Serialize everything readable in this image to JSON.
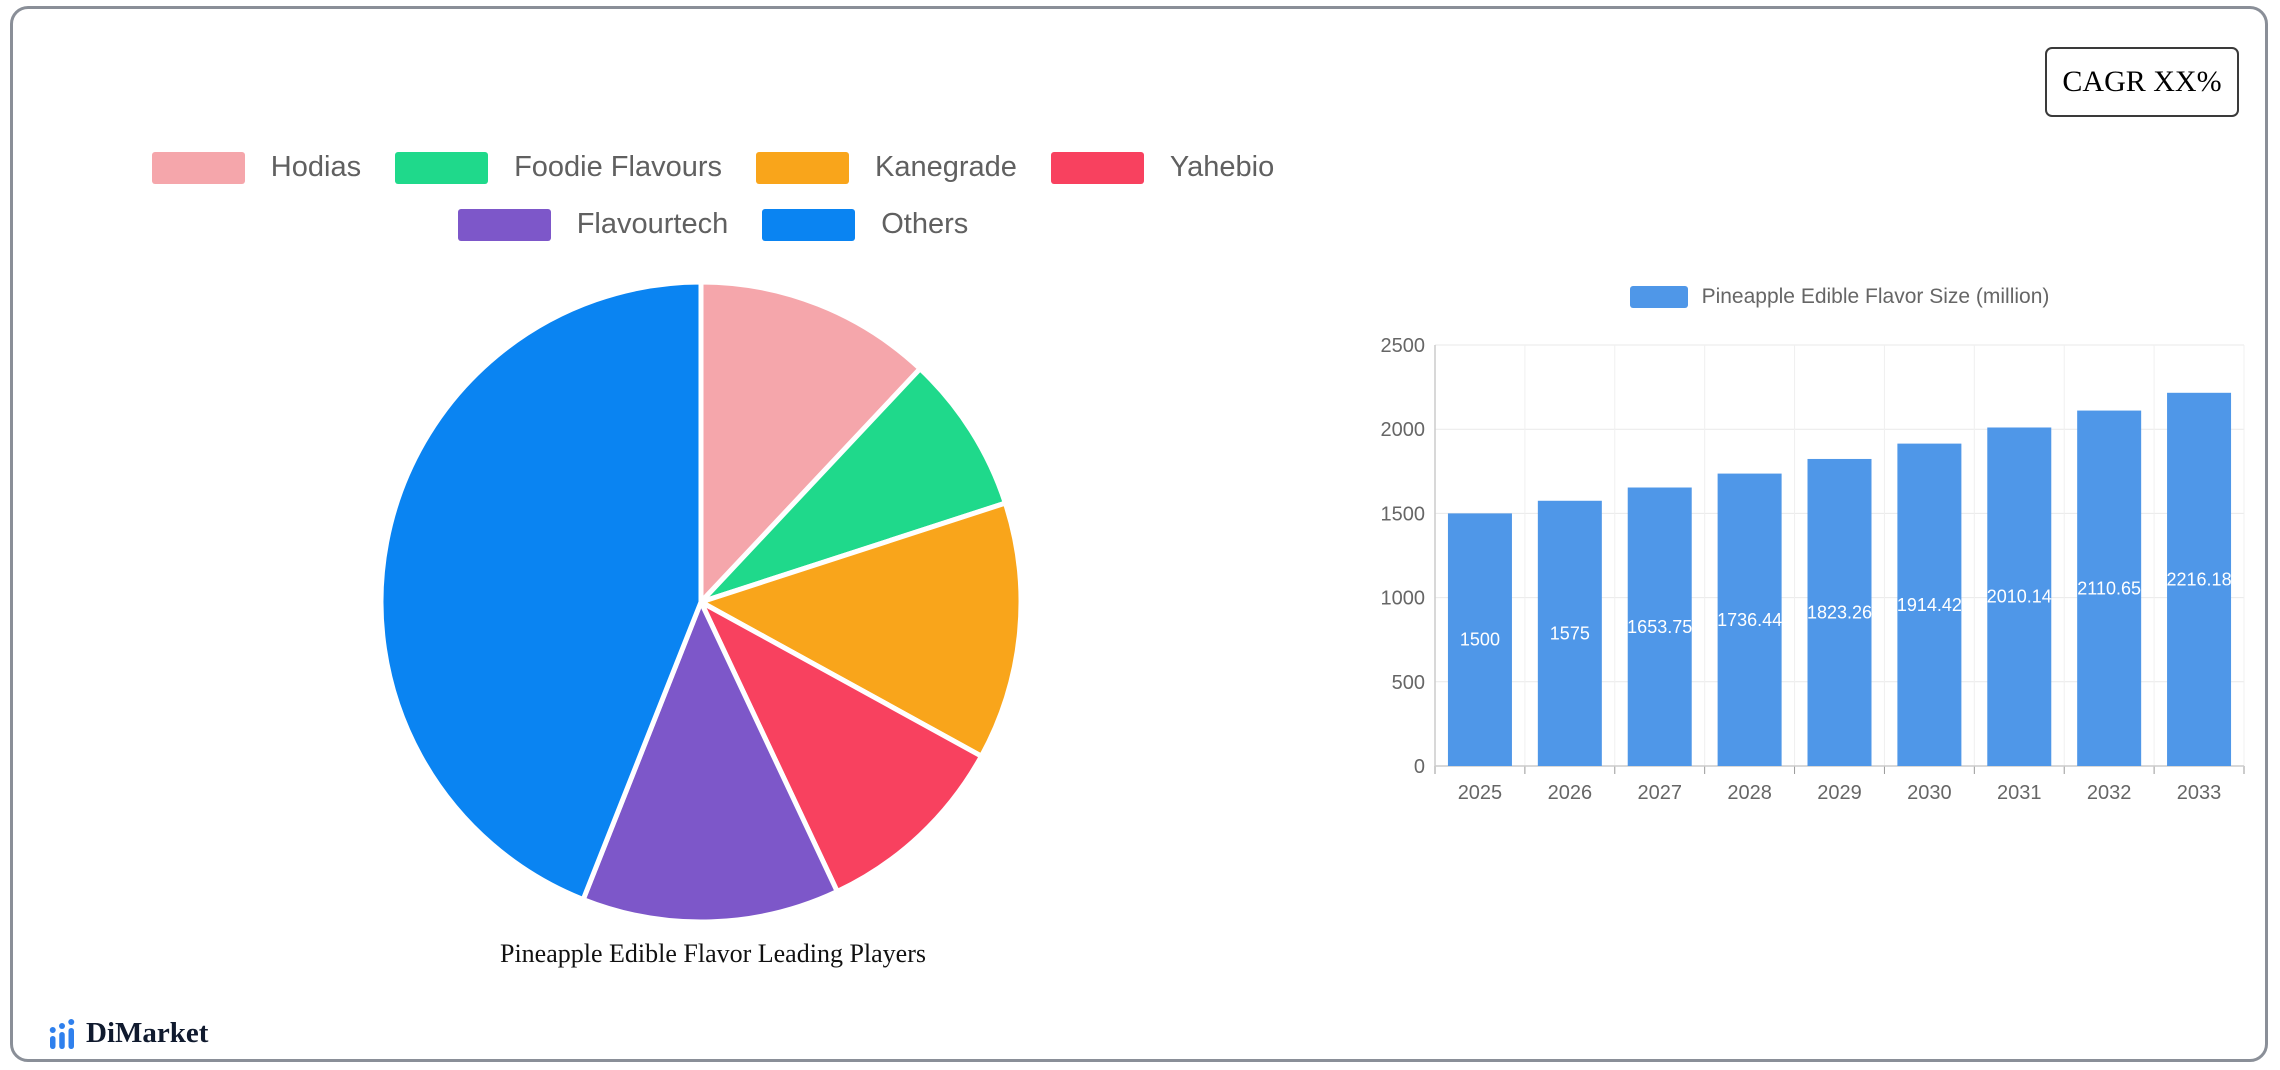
{
  "card": {
    "cagr_label": "CAGR XX%"
  },
  "logo": {
    "text": "DiMarket",
    "icon_color": "#2f80ed"
  },
  "colors": {
    "bar_blue": "#4f97e8",
    "axis": "#cccccc",
    "grid": "#e9e9e9",
    "tick_text": "#666666",
    "legend_text": "#606060"
  },
  "chart_data": [
    {
      "type": "pie",
      "title": "Pineapple Edible Flavor Leading Players",
      "labels": [
        "Hodias",
        "Foodie Flavours",
        "Kanegrade",
        "Yahebio",
        "Flavourtech",
        "Others"
      ],
      "values": [
        12,
        8,
        13,
        10,
        13,
        44
      ],
      "colors": [
        "#f5a6ab",
        "#1fd98b",
        "#f9a51b",
        "#f8415f",
        "#7d57c9",
        "#0a84f2"
      ],
      "legend_position": "top",
      "legend_rows": [
        4,
        2
      ],
      "start_angle_deg": 0,
      "direction": "clockwise",
      "slice_border_color": "#ffffff"
    },
    {
      "type": "bar",
      "legend": "Pineapple Edible Flavor Size (million)",
      "categories": [
        "2025",
        "2026",
        "2027",
        "2028",
        "2029",
        "2030",
        "2031",
        "2032",
        "2033"
      ],
      "values": [
        1500,
        1575,
        1653.75,
        1736.44,
        1823.26,
        1914.42,
        2010.14,
        2110.65,
        2216.18
      ],
      "bar_color": "#4f97e8",
      "ylim": [
        0,
        2500
      ],
      "yticks": [
        0,
        500,
        1000,
        1500,
        2000,
        2500
      ],
      "grid": true,
      "value_labels": "inside-center",
      "value_label_color": "#ffffff",
      "legend_position": "top"
    }
  ]
}
